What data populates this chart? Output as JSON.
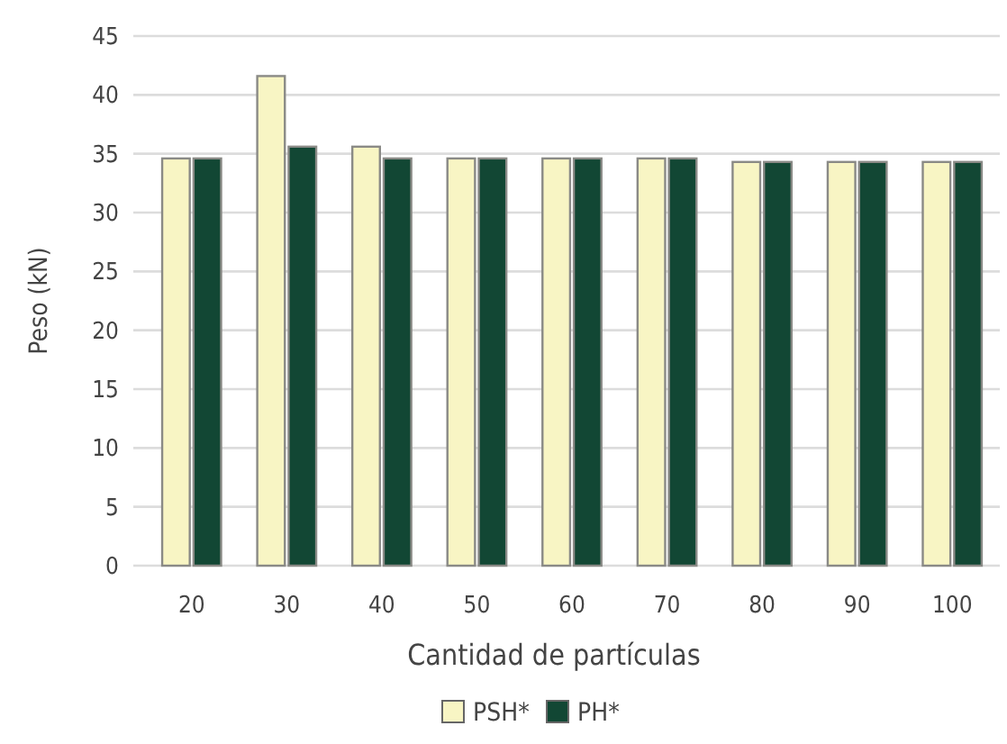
{
  "chart_data": {
    "type": "bar",
    "xlabel": "Cantidad de partículas",
    "ylabel": "Peso (kN)",
    "categories": [
      "20",
      "30",
      "40",
      "50",
      "60",
      "70",
      "80",
      "90",
      "100"
    ],
    "series": [
      {
        "name": "PSH*",
        "color": "#f8f5c4",
        "values": [
          34.6,
          41.6,
          35.6,
          34.6,
          34.6,
          34.6,
          34.3,
          34.3,
          34.3
        ]
      },
      {
        "name": "PH*",
        "color": "#124734",
        "values": [
          34.6,
          35.6,
          34.6,
          34.6,
          34.6,
          34.6,
          34.3,
          34.3,
          34.3
        ]
      }
    ],
    "ylim": [
      0,
      45
    ],
    "yticks": [
      0,
      5,
      10,
      15,
      20,
      25,
      30,
      35,
      40,
      45
    ],
    "grid": "y",
    "legend": "bottom"
  }
}
